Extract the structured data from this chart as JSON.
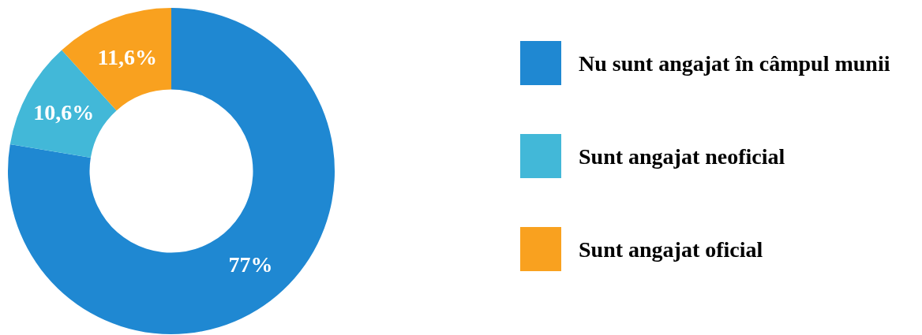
{
  "chart_data": {
    "type": "donut",
    "categories": [
      "Nu sunt angajat în câmpul munii",
      "Sunt angajat neoficial",
      "Sunt angajat oficial"
    ],
    "values": [
      77,
      10.6,
      11.6
    ],
    "colors": [
      "#1f88d2",
      "#42b8d8",
      "#f9a11f"
    ],
    "value_labels": [
      "77%",
      "10,6%",
      "11,6%"
    ],
    "legend": "right"
  }
}
